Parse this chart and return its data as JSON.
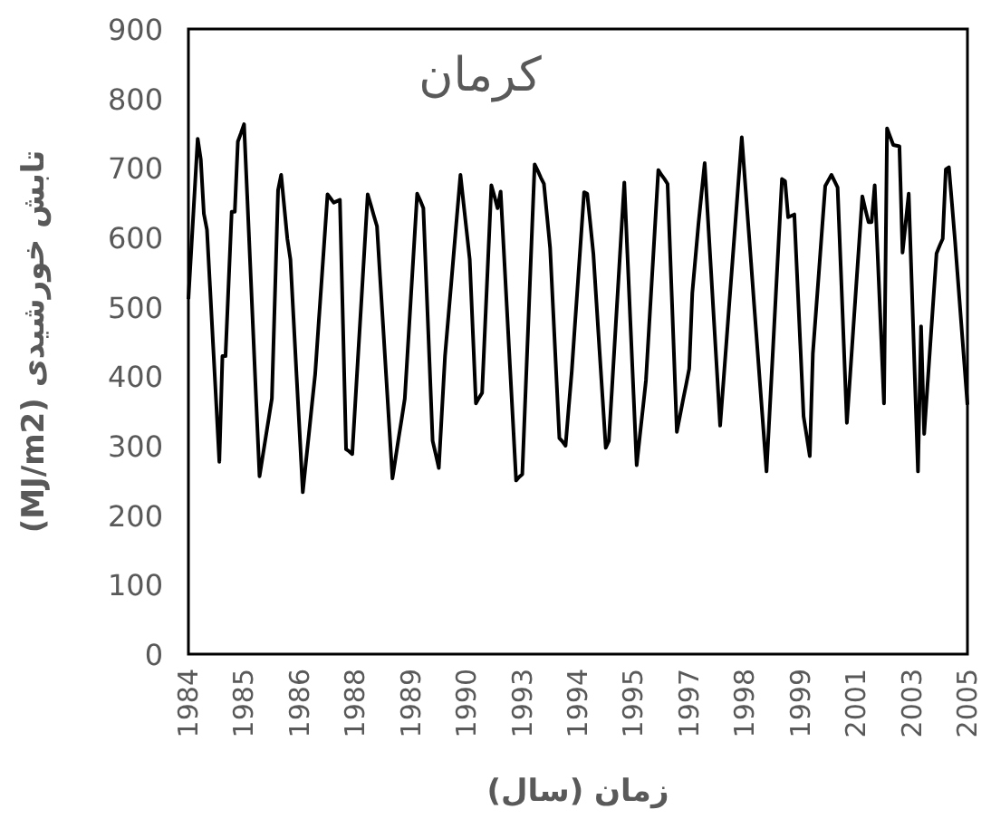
{
  "chart_data": {
    "type": "line",
    "title": "کرمان",
    "xlabel": "زمان (سال)",
    "ylabel": "تابش خورشیدی (MJ/m2)",
    "ylim": [
      0,
      900
    ],
    "yticks": [
      0,
      100,
      200,
      300,
      400,
      500,
      600,
      700,
      800,
      900
    ],
    "categories": [
      "1984",
      null,
      null,
      null,
      null,
      null,
      null,
      null,
      null,
      null,
      null,
      null,
      null,
      null,
      null,
      null,
      null,
      null,
      "1985",
      null,
      null,
      null,
      null,
      null,
      null,
      null,
      null,
      null,
      null,
      null,
      null,
      null,
      null,
      null,
      null,
      null,
      "1986",
      null,
      null,
      null,
      null,
      null,
      null,
      null,
      null,
      null,
      null,
      null,
      null,
      null,
      null,
      null,
      null,
      null,
      "1988",
      null,
      null,
      null,
      null,
      null,
      null,
      null,
      null,
      null,
      null,
      null,
      null,
      null,
      null,
      null,
      null,
      null,
      "1989",
      null,
      null,
      null,
      null,
      null,
      null,
      null,
      null,
      null,
      null,
      null,
      null,
      null,
      null,
      null,
      null,
      null,
      "1990",
      null,
      null,
      null,
      null,
      null,
      null,
      null,
      null,
      null,
      null,
      null,
      null,
      null,
      null,
      null,
      null,
      null,
      "1993",
      null,
      null,
      null,
      null,
      null,
      null,
      null,
      null,
      null,
      null,
      null,
      null,
      null,
      null,
      null,
      null,
      null,
      "1994",
      null,
      null,
      null,
      null,
      null,
      null,
      null,
      null,
      null,
      null,
      null,
      null,
      null,
      null,
      null,
      null,
      null,
      "1995",
      null,
      null,
      null,
      null,
      null,
      null,
      null,
      null,
      null,
      null,
      null,
      null,
      null,
      null,
      null,
      null,
      null,
      "1997",
      null,
      null,
      null,
      null,
      null,
      null,
      null,
      null,
      null,
      null,
      null,
      null,
      null,
      null,
      null,
      null,
      null,
      "1998",
      null,
      null,
      null,
      null,
      null,
      null,
      null,
      null,
      null,
      null,
      null,
      null,
      null,
      null,
      null,
      null,
      null,
      "1999",
      null,
      null,
      null,
      null,
      null,
      null,
      null,
      null,
      null,
      null,
      null,
      null,
      null,
      null,
      null,
      null,
      null,
      "2001",
      null,
      null,
      null,
      null,
      null,
      null,
      null,
      null,
      null,
      null,
      null,
      null,
      null,
      null,
      null,
      null,
      null,
      "2003",
      null,
      null,
      null,
      null,
      null,
      null,
      null,
      null,
      null,
      null,
      null,
      null,
      null,
      null,
      null,
      null,
      null,
      "2005"
    ],
    "grid": false,
    "marker": "none",
    "line_style": "solid",
    "series": [
      {
        "color": "#000000",
        "values": [
          511,
          588,
          665,
          742,
          712,
          634,
          611,
          528,
          444,
          361,
          277,
          429,
          429,
          533,
          637,
          637,
          738,
          750,
          763,
          662,
          560,
          459,
          357,
          256,
          284,
          312,
          340,
          368,
          518,
          668,
          690,
          644,
          598,
          568,
          484,
          400,
          317,
          233,
          276,
          318,
          361,
          403,
          468,
          532,
          597,
          662,
          656,
          650,
          652,
          654,
          475,
          295,
          292,
          288,
          363,
          438,
          512,
          587,
          662,
          647,
          631,
          616,
          543,
          471,
          398,
          326,
          253,
          282,
          311,
          339,
          368,
          442,
          516,
          589,
          663,
          653,
          642,
          530,
          419,
          307,
          288,
          268,
          349,
          429,
          481,
          533,
          586,
          638,
          690,
          649,
          609,
          568,
          465,
          361,
          369,
          376,
          476,
          575,
          675,
          659,
          642,
          666,
          583,
          500,
          416,
          333,
          250,
          255,
          259,
          371,
          482,
          594,
          705,
          696,
          686,
          677,
          631,
          585,
          494,
          402,
          311,
          306,
          300,
          354,
          407,
          472,
          536,
          601,
          665,
          663,
          620,
          576,
          506,
          436,
          367,
          297,
          307,
          381,
          456,
          530,
          605,
          679,
          577,
          475,
          374,
          272,
          313,
          353,
          394,
          470,
          545,
          621,
          697,
          690,
          684,
          677,
          558,
          439,
          320,
          343,
          366,
          388,
          411,
          520,
          570,
          620,
          664,
          707,
          631,
          556,
          480,
          405,
          329,
          388,
          447,
          507,
          566,
          625,
          685,
          744,
          684,
          624,
          564,
          503,
          443,
          383,
          323,
          263,
          347,
          431,
          516,
          600,
          684,
          681,
          629,
          631,
          633,
          536,
          439,
          342,
          314,
          285,
          433,
          493,
          553,
          614,
          674,
          682,
          690,
          681,
          672,
          559,
          446,
          333,
          398,
          464,
          529,
          594,
          659,
          640,
          622,
          622,
          675,
          570,
          466,
          361,
          757,
          745,
          733,
          732,
          731,
          578,
          620,
          663,
          530,
          396,
          263,
          472,
          317,
          382,
          447,
          512,
          577,
          588,
          598,
          698,
          701,
          648,
          594,
          535,
          476,
          418,
          359
        ]
      }
    ]
  }
}
